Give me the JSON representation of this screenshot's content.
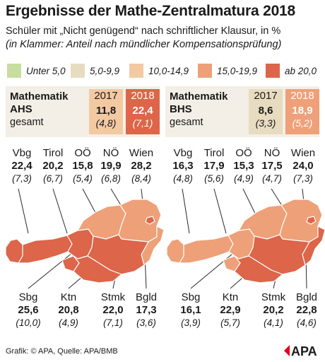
{
  "title": "Ergebnisse der Mathe-Zentralmatura 2018",
  "subtitle": "Schüler mit „Nicht genügend“ nach schriftlicher Klausur, in %",
  "subtitle_note": "(in Klammer: Anteil nach mündlicher Kompensationsprüfung)",
  "legend": [
    {
      "label": "Unter 5,0",
      "color": "#c8dda0"
    },
    {
      "label": "5,0-9,9",
      "color": "#e8dcc0"
    },
    {
      "label": "10,0-14,9",
      "color": "#f3c9a2"
    },
    {
      "label": "15,0-19,9",
      "color": "#eea078"
    },
    {
      "label": "ab 20,0",
      "color": "#dd6549"
    }
  ],
  "panels": [
    {
      "heading_line1": "Mathematik",
      "heading_line2": "AHS",
      "heading_line3": "gesamt",
      "year_a": {
        "label": "2017",
        "value": "11,8",
        "sub": "(4,8)",
        "color": "#f3c9a2"
      },
      "year_b": {
        "label": "2018",
        "value": "22,4",
        "sub": "(7,1)",
        "color": "#dd6549"
      },
      "regions_top": [
        {
          "name": "Vbg",
          "value": "22,4",
          "sub": "(7,3)"
        },
        {
          "name": "Tirol",
          "value": "20,2",
          "sub": "(6,7)"
        },
        {
          "name": "OÖ",
          "value": "15,8",
          "sub": "(5,4)"
        },
        {
          "name": "NÖ",
          "value": "19,9",
          "sub": "(6,8)"
        },
        {
          "name": "Wien",
          "value": "28,2",
          "sub": "(8,4)"
        }
      ],
      "regions_bottom": [
        {
          "name": "Sbg",
          "value": "25,6",
          "sub": "(10,0)"
        },
        {
          "name": "Ktn",
          "value": "20,8",
          "sub": "(4,9)"
        },
        {
          "name": "Stmk",
          "value": "22,0",
          "sub": "(7,1)"
        },
        {
          "name": "Bgld",
          "value": "17,3",
          "sub": "(3,6)"
        }
      ]
    },
    {
      "heading_line1": "Mathematik",
      "heading_line2": "BHS",
      "heading_line3": "gesamt",
      "year_a": {
        "label": "2017",
        "value": "8,6",
        "sub": "(3,3)",
        "color": "#e8dcc0"
      },
      "year_b": {
        "label": "2018",
        "value": "18,9",
        "sub": "(5,2)",
        "color": "#eea078"
      },
      "regions_top": [
        {
          "name": "Vbg",
          "value": "16,3",
          "sub": "(4,8)"
        },
        {
          "name": "Tirol",
          "value": "17,9",
          "sub": "(5,6)"
        },
        {
          "name": "OÖ",
          "value": "15,3",
          "sub": "(4,9)"
        },
        {
          "name": "NÖ",
          "value": "17,5",
          "sub": "(4,7)"
        },
        {
          "name": "Wien",
          "value": "24,0",
          "sub": "(7,3)"
        }
      ],
      "regions_bottom": [
        {
          "name": "Sbg",
          "value": "16,1",
          "sub": "(3,9)"
        },
        {
          "name": "Ktn",
          "value": "22,9",
          "sub": "(5,7)"
        },
        {
          "name": "Stmk",
          "value": "20,2",
          "sub": "(4,1)"
        },
        {
          "name": "Bgld",
          "value": "22,8",
          "sub": "(4,6)"
        }
      ]
    }
  ],
  "footer": "Grafik: © APA, Quelle: APA/BMB",
  "logo": "APA"
}
